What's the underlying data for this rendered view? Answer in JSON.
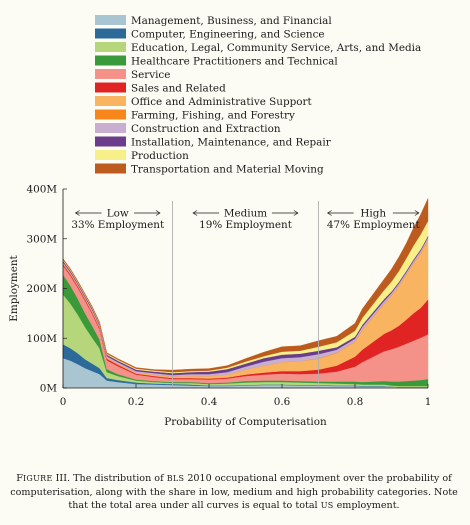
{
  "chart_data": {
    "type": "area",
    "stacked": true,
    "xlabel": "Probability of Computerisation",
    "ylabel": "Employment",
    "xlim": [
      0,
      1
    ],
    "ylim": [
      0,
      400
    ],
    "xticks": [
      0,
      0.2,
      0.4,
      0.6,
      0.8,
      1
    ],
    "xtick_labels": [
      "0",
      "0.2",
      "0.4",
      "0.6",
      "0.8",
      "1"
    ],
    "yticks": [
      0,
      100,
      200,
      300,
      400
    ],
    "ytick_labels": [
      "0M",
      "100M",
      "200M",
      "300M",
      "400M"
    ],
    "grid": false,
    "legend_position": "top",
    "region_dividers": [
      0.3,
      0.7
    ],
    "regions": [
      {
        "name": "Low",
        "share": "33% Employment",
        "x_center": 0.15
      },
      {
        "name": "Medium",
        "share": "19% Employment",
        "x_center": 0.5
      },
      {
        "name": "High",
        "share": "47% Employment",
        "x_center": 0.85
      }
    ],
    "x": [
      0,
      0.02,
      0.04,
      0.06,
      0.08,
      0.1,
      0.12,
      0.15,
      0.2,
      0.25,
      0.3,
      0.35,
      0.4,
      0.45,
      0.5,
      0.55,
      0.6,
      0.65,
      0.7,
      0.75,
      0.8,
      0.82,
      0.85,
      0.88,
      0.9,
      0.92,
      0.94,
      0.96,
      0.98,
      1
    ],
    "series": [
      {
        "name": "Management, Business, and Financial",
        "color": "#a9c5d2",
        "values": [
          60,
          55,
          48,
          40,
          34,
          28,
          15,
          12,
          8,
          7,
          6,
          5,
          4,
          4,
          5,
          6,
          6,
          5,
          5,
          4,
          4,
          3,
          3,
          3,
          3,
          2,
          2,
          2,
          2,
          2
        ]
      },
      {
        "name": "Computer, Engineering, and Science",
        "color": "#2c6a9a",
        "values": [
          28,
          25,
          22,
          18,
          15,
          12,
          5,
          4,
          3,
          2,
          2,
          2,
          1,
          1,
          1,
          1,
          1,
          1,
          1,
          1,
          1,
          1,
          1,
          1,
          0,
          0,
          0,
          0,
          0,
          0
        ]
      },
      {
        "name": "Education, Legal, Community Service, Arts, and Media",
        "color": "#b5d67a",
        "values": [
          100,
          90,
          78,
          65,
          52,
          40,
          12,
          8,
          4,
          3,
          2,
          3,
          3,
          4,
          5,
          5,
          5,
          5,
          4,
          4,
          3,
          3,
          3,
          3,
          2,
          2,
          2,
          2,
          2,
          2
        ]
      },
      {
        "name": "Healthcare Practitioners and Technical",
        "color": "#3a9a3a",
        "values": [
          40,
          36,
          32,
          28,
          24,
          18,
          6,
          4,
          2,
          2,
          2,
          2,
          2,
          2,
          3,
          3,
          3,
          3,
          3,
          4,
          5,
          5,
          6,
          7,
          8,
          9,
          10,
          11,
          12,
          14
        ]
      },
      {
        "name": "Service",
        "color": "#f4928a",
        "values": [
          18,
          20,
          22,
          25,
          24,
          20,
          18,
          16,
          10,
          8,
          6,
          6,
          7,
          8,
          10,
          12,
          14,
          14,
          16,
          20,
          30,
          40,
          50,
          60,
          65,
          70,
          75,
          80,
          85,
          90
        ]
      },
      {
        "name": "Sales and Related",
        "color": "#e02424",
        "values": [
          3,
          3,
          3,
          3,
          3,
          3,
          3,
          3,
          2,
          2,
          2,
          2,
          2,
          2,
          3,
          4,
          5,
          6,
          8,
          12,
          20,
          25,
          30,
          35,
          38,
          42,
          48,
          55,
          60,
          70
        ]
      },
      {
        "name": "Office and Administrative Support",
        "color": "#f9b462",
        "values": [
          2,
          2,
          2,
          2,
          2,
          2,
          2,
          2,
          2,
          3,
          3,
          4,
          5,
          6,
          10,
          14,
          18,
          20,
          22,
          25,
          30,
          40,
          50,
          60,
          70,
          80,
          90,
          100,
          110,
          120
        ]
      },
      {
        "name": "Farming, Fishing, and Forestry",
        "color": "#f7861b",
        "values": [
          0,
          0,
          0,
          0,
          0,
          0,
          0,
          0,
          0,
          0,
          0,
          0,
          0,
          0,
          0,
          0,
          0,
          0,
          1,
          1,
          1,
          1,
          1,
          1,
          1,
          1,
          1,
          1,
          1,
          1
        ]
      },
      {
        "name": "Construction and Extraction",
        "color": "#c8aed0",
        "values": [
          2,
          2,
          2,
          2,
          3,
          3,
          3,
          3,
          3,
          3,
          3,
          4,
          4,
          5,
          6,
          8,
          8,
          8,
          8,
          6,
          5,
          5,
          5,
          5,
          4,
          4,
          4,
          4,
          4,
          4
        ]
      },
      {
        "name": "Installation, Maintenance, and Repair",
        "color": "#6a3d8c",
        "values": [
          3,
          3,
          3,
          3,
          3,
          3,
          3,
          3,
          3,
          3,
          4,
          4,
          5,
          6,
          6,
          7,
          7,
          7,
          7,
          5,
          4,
          4,
          4,
          4,
          3,
          3,
          3,
          3,
          3,
          3
        ]
      },
      {
        "name": "Production",
        "color": "#f7ef8a",
        "values": [
          2,
          2,
          2,
          2,
          2,
          2,
          2,
          2,
          2,
          2,
          2,
          2,
          2,
          3,
          4,
          4,
          6,
          6,
          8,
          10,
          12,
          14,
          16,
          18,
          20,
          22,
          25,
          28,
          30,
          30
        ]
      },
      {
        "name": "Transportation and Material Moving",
        "color": "#bd5a1e",
        "values": [
          2,
          2,
          2,
          2,
          2,
          2,
          2,
          2,
          2,
          2,
          4,
          4,
          4,
          4,
          6,
          8,
          10,
          10,
          12,
          12,
          15,
          18,
          20,
          22,
          25,
          28,
          30,
          35,
          40,
          45
        ]
      }
    ]
  },
  "caption": {
    "label_prefix": "F",
    "label_small": "IGURE",
    "label_number": " III.",
    "text_1": " The distribution of ",
    "abbr_1": "BLS",
    "text_2": " 2010 occupational employment over the probability of computerisation, along with the share in low, medium and high probability categories. Note that the total area under all curves is equal to total ",
    "abbr_2": "US",
    "text_3": " employment."
  }
}
